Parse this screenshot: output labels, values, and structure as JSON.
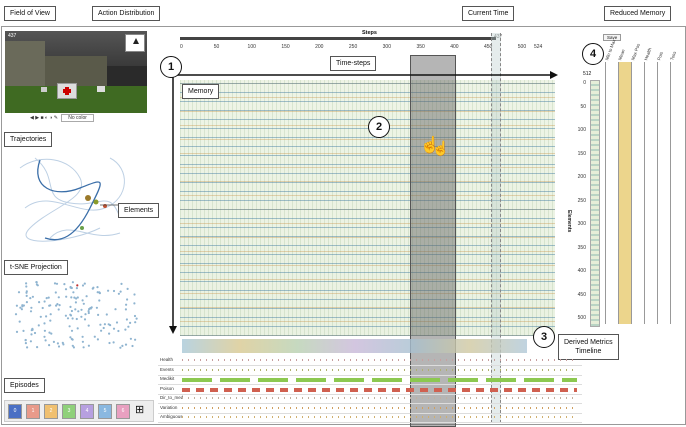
{
  "labels": {
    "field_of_view": "Field of View",
    "action_distribution": "Action Distribution",
    "current_time": "Current Time",
    "reduced_memory": "Reduced Memory",
    "trajectories": "Trajectories",
    "elements": "Elements",
    "tsne": "t-SNE Projection",
    "episodes": "Episodes",
    "time_steps": "Time-steps",
    "memory": "Memory",
    "derived_metrics": "Derived Metrics\nTimeline"
  },
  "steps_axis": {
    "title": "Steps",
    "ticks": [
      "0",
      "50",
      "100",
      "150",
      "200",
      "250",
      "300",
      "350",
      "400",
      "450",
      "500",
      "524"
    ]
  },
  "current_step": "437",
  "game_view": {
    "step": "437",
    "select_value": "No color"
  },
  "markers": [
    "1",
    "2",
    "3",
    "4"
  ],
  "reduced_memory": {
    "button": "Save",
    "axis_top": "512",
    "axis_label": "Elements",
    "ticks": [
      "0",
      "50",
      "100",
      "150",
      "200",
      "250",
      "300",
      "350",
      "400",
      "450",
      "500"
    ],
    "columns": [
      "Min to Max",
      "Mean",
      "Max Pos",
      "Health",
      "Pois",
      "Toss"
    ]
  },
  "metrics": [
    "Health",
    "Events",
    "Medikit",
    "Poison",
    "Dir_to_med",
    "Variation",
    "Ambiguous"
  ],
  "episodes": [
    {
      "label": "0",
      "color": "#4a6fc4"
    },
    {
      "label": "1",
      "color": "#e89a8a"
    },
    {
      "label": "2",
      "color": "#f0c070"
    },
    {
      "label": "3",
      "color": "#8fd07a"
    },
    {
      "label": "4",
      "color": "#b7a0e0"
    },
    {
      "label": "5",
      "color": "#8ab8e0"
    },
    {
      "label": "6",
      "color": "#e8a0c0"
    }
  ]
}
